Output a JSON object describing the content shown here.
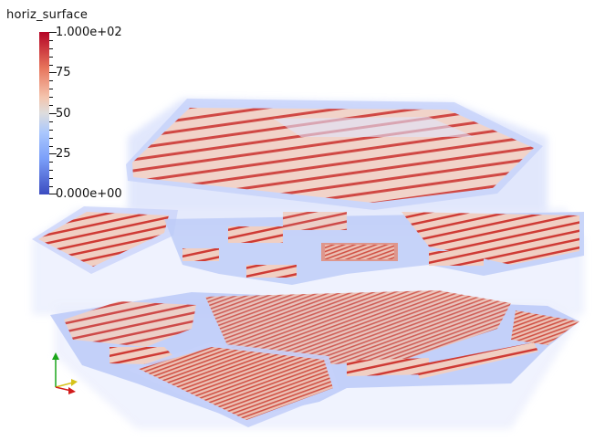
{
  "legend": {
    "title": "horiz_surface",
    "max_label": "1.000e+02",
    "label_75": "75",
    "label_50": "50",
    "label_25": "25",
    "min_label": "0.000e+00"
  },
  "colormap": {
    "high": "#b40426",
    "mid": "#dddddd",
    "low": "#3b4cc0",
    "ghost": "#c9d4fb"
  },
  "orientation_axes": {
    "x_color": "#d21c1c",
    "y_color": "#d6c21a",
    "z_color": "#1aa51a"
  }
}
